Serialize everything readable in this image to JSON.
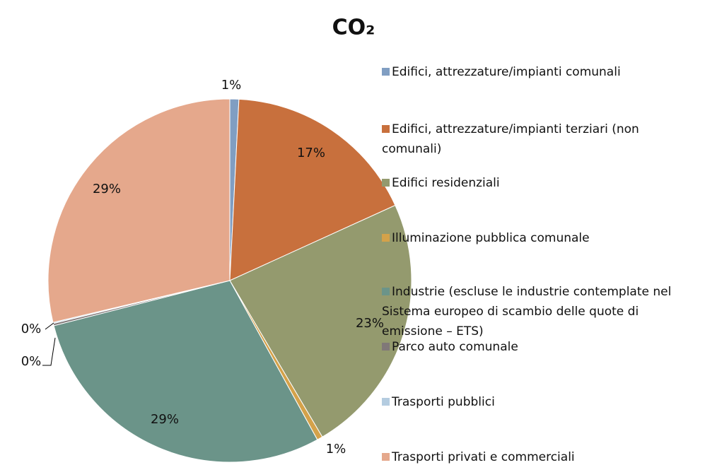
{
  "chart_data": {
    "type": "pie",
    "title": "CO₂",
    "categories": [
      "Edifici, attrezzature/impianti comunali",
      "Edifici, attrezzature/impianti terziari (non comunali)",
      "Edifici residenziali",
      "Illuminazione pubblica comunale",
      "Industrie (escluse le industrie contemplate nel Sistema europeo di scambio delle quote di emissione – ETS)",
      "Parco auto comunale",
      "Trasporti pubblici",
      "Trasporti privati e commerciali"
    ],
    "values": [
      0.8,
      17.4,
      23.3,
      0.5,
      29.0,
      0.2,
      0.1,
      28.7
    ],
    "value_labels": [
      "1%",
      "17%",
      "23%",
      "1%",
      "29%",
      "0%",
      "0%",
      "29%"
    ],
    "colors": [
      "#809ec2",
      "#c8703d",
      "#949a6e",
      "#d4a24a",
      "#6b9489",
      "#807878",
      "#b4cce0",
      "#e5a88c"
    ],
    "legend": "right"
  }
}
